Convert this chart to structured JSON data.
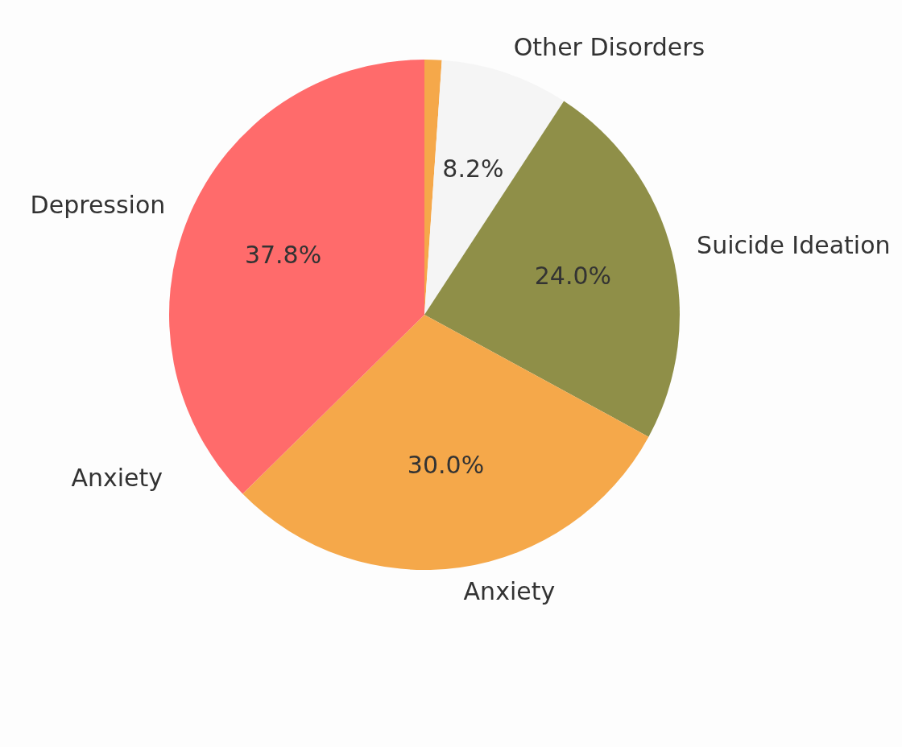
{
  "chart_data": {
    "type": "pie",
    "categories": [
      null,
      "Other Disorders",
      "Suicide Ideation",
      "Anxiety",
      "Depression"
    ],
    "values": [
      1.1,
      8.2,
      24.0,
      30.0,
      37.8
    ],
    "colors": [
      "#f5a84a",
      "#f5f5f5",
      "#8f8f48",
      "#f5a84a",
      "#ff6b6b"
    ],
    "value_labels": [
      null,
      "8.2%",
      "24.0%",
      "30.0%",
      "37.8%"
    ],
    "annotations": [
      "Anxiety"
    ]
  }
}
